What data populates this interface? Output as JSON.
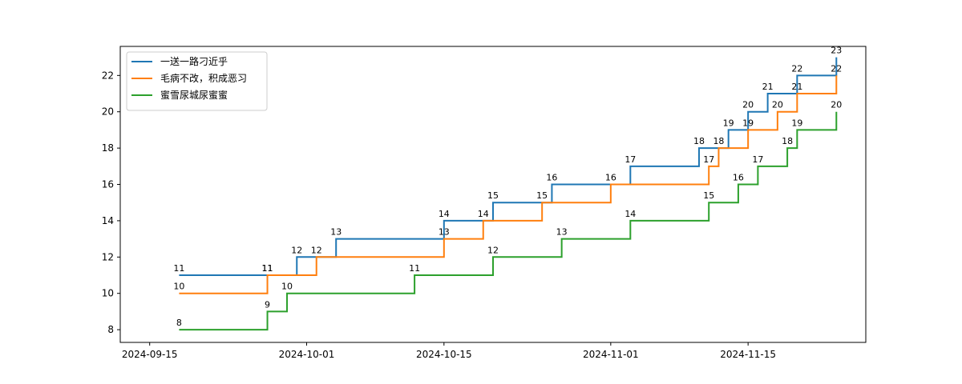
{
  "chart_data": {
    "type": "line",
    "step": "post",
    "title": "",
    "xlabel": "",
    "ylabel": "",
    "x_axis_type": "date",
    "xlim": [
      "2024-09-12",
      "2024-11-27"
    ],
    "ylim": [
      7.3,
      23.6
    ],
    "x_ticks": [
      "2024-09-15",
      "2024-10-01",
      "2024-10-15",
      "2024-11-01",
      "2024-11-15"
    ],
    "y_ticks": [
      8,
      10,
      12,
      14,
      16,
      18,
      20,
      22
    ],
    "grid": false,
    "legend_position": "top-left",
    "series": [
      {
        "name": "一送一路刁近乎",
        "color": "#1f77b4",
        "points": [
          {
            "x": "2024-09-18",
            "y": 11,
            "label": "11"
          },
          {
            "x": "2024-09-27",
            "y": 11,
            "label": "11"
          },
          {
            "x": "2024-09-30",
            "y": 12,
            "label": "12"
          },
          {
            "x": "2024-10-02",
            "y": 12
          },
          {
            "x": "2024-10-04",
            "y": 13,
            "label": "13"
          },
          {
            "x": "2024-10-12",
            "y": 13
          },
          {
            "x": "2024-10-15",
            "y": 14,
            "label": "14"
          },
          {
            "x": "2024-10-19",
            "y": 14
          },
          {
            "x": "2024-10-20",
            "y": 15,
            "label": "15"
          },
          {
            "x": "2024-10-25",
            "y": 15
          },
          {
            "x": "2024-10-26",
            "y": 16,
            "label": "16"
          },
          {
            "x": "2024-11-02",
            "y": 16
          },
          {
            "x": "2024-11-03",
            "y": 17,
            "label": "17"
          },
          {
            "x": "2024-11-08",
            "y": 17
          },
          {
            "x": "2024-11-10",
            "y": 18,
            "label": "18"
          },
          {
            "x": "2024-11-11",
            "y": 18
          },
          {
            "x": "2024-11-13",
            "y": 19,
            "label": "19"
          },
          {
            "x": "2024-11-14",
            "y": 19
          },
          {
            "x": "2024-11-15",
            "y": 20,
            "label": "20"
          },
          {
            "x": "2024-11-16",
            "y": 20
          },
          {
            "x": "2024-11-17",
            "y": 21,
            "label": "21"
          },
          {
            "x": "2024-11-19",
            "y": 21
          },
          {
            "x": "2024-11-20",
            "y": 22,
            "label": "22"
          },
          {
            "x": "2024-11-22",
            "y": 22
          },
          {
            "x": "2024-11-24",
            "y": 23,
            "label": "23"
          }
        ]
      },
      {
        "name": "毛病不改，积成恶习",
        "color": "#ff7f0e",
        "points": [
          {
            "x": "2024-09-18",
            "y": 10,
            "label": "10"
          },
          {
            "x": "2024-09-24",
            "y": 10
          },
          {
            "x": "2024-09-27",
            "y": 11,
            "label": "11"
          },
          {
            "x": "2024-09-30",
            "y": 11
          },
          {
            "x": "2024-10-02",
            "y": 12,
            "label": "12"
          },
          {
            "x": "2024-10-12",
            "y": 12
          },
          {
            "x": "2024-10-15",
            "y": 13,
            "label": "13"
          },
          {
            "x": "2024-10-18",
            "y": 13
          },
          {
            "x": "2024-10-19",
            "y": 14,
            "label": "14"
          },
          {
            "x": "2024-10-24",
            "y": 14
          },
          {
            "x": "2024-10-25",
            "y": 15,
            "label": "15"
          },
          {
            "x": "2024-10-27",
            "y": 15
          },
          {
            "x": "2024-11-01",
            "y": 16,
            "label": "16"
          },
          {
            "x": "2024-11-10",
            "y": 16
          },
          {
            "x": "2024-11-11",
            "y": 17,
            "label": "17"
          },
          {
            "x": "2024-11-12",
            "y": 18,
            "label": "18"
          },
          {
            "x": "2024-11-14",
            "y": 18
          },
          {
            "x": "2024-11-15",
            "y": 19,
            "label": "19"
          },
          {
            "x": "2024-11-16",
            "y": 19
          },
          {
            "x": "2024-11-18",
            "y": 20,
            "label": "20"
          },
          {
            "x": "2024-11-19",
            "y": 20
          },
          {
            "x": "2024-11-20",
            "y": 21,
            "label": "21"
          },
          {
            "x": "2024-11-21",
            "y": 21
          },
          {
            "x": "2024-11-24",
            "y": 22,
            "label": "22"
          }
        ]
      },
      {
        "name": "蜜雪尿城尿蜜蜜",
        "color": "#2ca02c",
        "points": [
          {
            "x": "2024-09-18",
            "y": 8,
            "label": "8"
          },
          {
            "x": "2024-09-24",
            "y": 8
          },
          {
            "x": "2024-09-27",
            "y": 9,
            "label": "9"
          },
          {
            "x": "2024-09-28",
            "y": 9
          },
          {
            "x": "2024-09-29",
            "y": 10,
            "label": "10"
          },
          {
            "x": "2024-10-11",
            "y": 10
          },
          {
            "x": "2024-10-12",
            "y": 11,
            "label": "11"
          },
          {
            "x": "2024-10-19",
            "y": 11
          },
          {
            "x": "2024-10-20",
            "y": 12,
            "label": "12"
          },
          {
            "x": "2024-10-26",
            "y": 12
          },
          {
            "x": "2024-10-27",
            "y": 13,
            "label": "13"
          },
          {
            "x": "2024-11-02",
            "y": 13
          },
          {
            "x": "2024-11-03",
            "y": 14,
            "label": "14"
          },
          {
            "x": "2024-11-10",
            "y": 14
          },
          {
            "x": "2024-11-11",
            "y": 15,
            "label": "15"
          },
          {
            "x": "2024-11-13",
            "y": 15
          },
          {
            "x": "2024-11-14",
            "y": 16,
            "label": "16"
          },
          {
            "x": "2024-11-15",
            "y": 16
          },
          {
            "x": "2024-11-16",
            "y": 17,
            "label": "17"
          },
          {
            "x": "2024-11-17",
            "y": 17
          },
          {
            "x": "2024-11-19",
            "y": 18,
            "label": "18"
          },
          {
            "x": "2024-11-20",
            "y": 19,
            "label": "19"
          },
          {
            "x": "2024-11-22",
            "y": 19
          },
          {
            "x": "2024-11-24",
            "y": 20,
            "label": "20"
          }
        ]
      }
    ]
  }
}
